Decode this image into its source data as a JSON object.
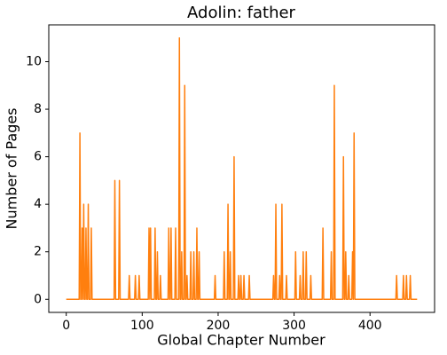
{
  "chart_data": {
    "type": "line",
    "title": "Adolin: father",
    "xlabel": "Global Chapter Number",
    "ylabel": "Number of Pages",
    "x": [
      0,
      17,
      18,
      19,
      20,
      21,
      22,
      23,
      24,
      25,
      26,
      27,
      28,
      29,
      30,
      32,
      33,
      34,
      63,
      64,
      65,
      69,
      70,
      71,
      82,
      83,
      84,
      90,
      91,
      92,
      95,
      96,
      97,
      108,
      109,
      110,
      111,
      112,
      116,
      117,
      118,
      119,
      120,
      121,
      123,
      124,
      125,
      134,
      135,
      136,
      137,
      138,
      139,
      143,
      144,
      145,
      148,
      149,
      150,
      151,
      152,
      153,
      155,
      156,
      157,
      158,
      159,
      160,
      163,
      164,
      165,
      167,
      168,
      169,
      171,
      172,
      173,
      174,
      175,
      176,
      195,
      196,
      197,
      207,
      208,
      209,
      212,
      213,
      214,
      215,
      216,
      217,
      220,
      221,
      222,
      226,
      227,
      228,
      229,
      230,
      231,
      233,
      234,
      235,
      240,
      241,
      242,
      272,
      273,
      274,
      275,
      276,
      277,
      280,
      281,
      282,
      283,
      284,
      285,
      289,
      290,
      291,
      301,
      302,
      303,
      307,
      308,
      309,
      311,
      312,
      313,
      315,
      316,
      317,
      321,
      322,
      323,
      337,
      338,
      339,
      348,
      349,
      350,
      352,
      353,
      354,
      364,
      365,
      366,
      367,
      368,
      369,
      371,
      372,
      373,
      376,
      377,
      378,
      379,
      380,
      434,
      435,
      436,
      443,
      444,
      445,
      447,
      448,
      449,
      452,
      453,
      454,
      462
    ],
    "series": [
      {
        "color": "#ff7f0e",
        "values": [
          0,
          0,
          7,
          0,
          0,
          3,
          0,
          4,
          0,
          0,
          3,
          0,
          0,
          4,
          0,
          0,
          3,
          0,
          0,
          5,
          0,
          0,
          5,
          0,
          0,
          1,
          0,
          0,
          1,
          0,
          0,
          1,
          0,
          0,
          3,
          0,
          3,
          0,
          0,
          3,
          0,
          0,
          2,
          0,
          0,
          1,
          0,
          0,
          3,
          0,
          0,
          3,
          0,
          0,
          3,
          0,
          0,
          11,
          0,
          0,
          2,
          0,
          0,
          9,
          0,
          0,
          1,
          0,
          0,
          2,
          0,
          0,
          2,
          0,
          0,
          3,
          0,
          0,
          2,
          0,
          0,
          1,
          0,
          0,
          2,
          0,
          0,
          4,
          0,
          0,
          2,
          0,
          0,
          6,
          0,
          0,
          1,
          0,
          0,
          1,
          0,
          0,
          1,
          0,
          0,
          1,
          0,
          0,
          1,
          0,
          0,
          4,
          0,
          0,
          1,
          0,
          0,
          4,
          0,
          0,
          1,
          0,
          0,
          2,
          0,
          0,
          1,
          0,
          0,
          2,
          0,
          0,
          2,
          0,
          0,
          1,
          0,
          0,
          3,
          0,
          0,
          2,
          0,
          0,
          9,
          0,
          0,
          6,
          0,
          0,
          2,
          0,
          0,
          1,
          0,
          0,
          2,
          0,
          7,
          0,
          0,
          1,
          0,
          0,
          1,
          0,
          0,
          1,
          0,
          0,
          1,
          0,
          0
        ]
      }
    ],
    "xlim": [
      -23,
      485
    ],
    "xticks": [
      0,
      100,
      200,
      300,
      400
    ],
    "ylim": [
      -0.55,
      11.55
    ],
    "yticks": [
      0,
      2,
      4,
      6,
      8,
      10
    ]
  }
}
